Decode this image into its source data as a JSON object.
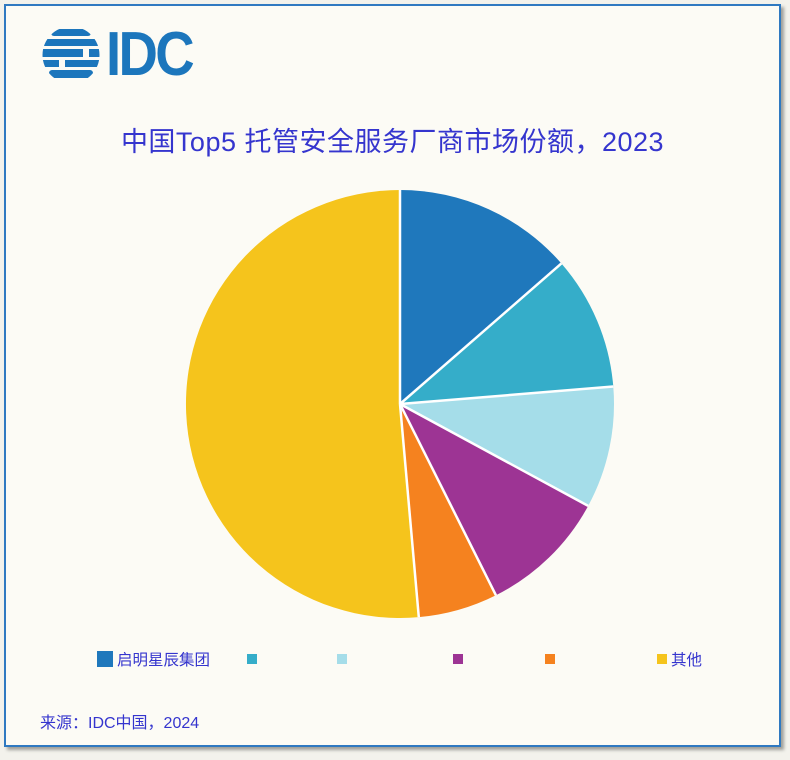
{
  "logo": {
    "brand": "IDC"
  },
  "source": {
    "text": "来源：IDC中国，2024"
  },
  "theme": {
    "title_color": "#3535CE",
    "frame_border_color": "#2F79C1",
    "background": "#FCFBF5",
    "logo_color": "#1C76BC",
    "separator_color": "#FFFFFF"
  },
  "chart_data": {
    "type": "pie",
    "title": "中国Top5 托管安全服务厂商市场份额，2023",
    "units": "percent market share (estimated from slice angles)",
    "start_angle_deg": 0,
    "direction": "clockwise",
    "legend_position": "bottom",
    "slices": [
      {
        "label": "启明星辰集团",
        "value": 13.6,
        "color": "#1F78BC"
      },
      {
        "label": "",
        "value": 10.1,
        "color": "#35ADC9"
      },
      {
        "label": "",
        "value": 9.2,
        "color": "#A5DDE9"
      },
      {
        "label": "",
        "value": 9.7,
        "color": "#9D3494"
      },
      {
        "label": "",
        "value": 6.0,
        "color": "#F5821F"
      },
      {
        "label": "其他",
        "value": 51.4,
        "color": "#F5C41C"
      }
    ]
  }
}
